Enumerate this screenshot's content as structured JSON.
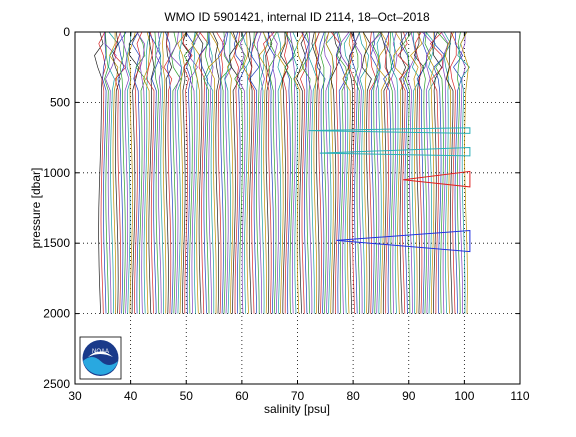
{
  "chart_data": {
    "type": "line",
    "title": "WMO ID 5901421, internal ID 2114, 18–Oct–2018",
    "xlabel": "salinity [psu]",
    "ylabel": "pressure [dbar]",
    "xlim": [
      30,
      110
    ],
    "ylim": [
      2500,
      0
    ],
    "y_reversed": true,
    "grid": "dotted",
    "xticks": [
      30,
      40,
      50,
      60,
      70,
      80,
      90,
      100,
      110
    ],
    "yticks": [
      0,
      500,
      1000,
      1500,
      2000,
      2500
    ],
    "profile_family": {
      "description_only_visual": true,
      "salinity_start_min": 34.5,
      "salinity_start_max": 100.5,
      "pressure_top": 0,
      "pressure_bottom": 2000,
      "colors": [
        "#1f1f1f",
        "#d62728",
        "#1f3fbf",
        "#2ca02c",
        "#7f3fbf",
        "#17a0a0",
        "#bf8f00"
      ]
    },
    "series": [
      {
        "name": "",
        "color": "#2ab0b8",
        "x": [
          72,
          101,
          101,
          72
        ],
        "y": [
          700,
          680,
          720,
          700
        ]
      },
      {
        "name": "",
        "color": "#2ab0b8",
        "x": [
          74,
          101,
          101,
          74
        ],
        "y": [
          860,
          820,
          880,
          860
        ]
      },
      {
        "name": "",
        "color": "#e02020",
        "x": [
          89,
          101,
          101,
          89
        ],
        "y": [
          1050,
          990,
          1100,
          1050
        ]
      },
      {
        "name": "",
        "color": "#2030e0",
        "x": [
          77,
          101,
          101,
          77
        ],
        "y": [
          1480,
          1410,
          1560,
          1480
        ]
      }
    ]
  },
  "logo": {
    "text": "NOAA"
  }
}
